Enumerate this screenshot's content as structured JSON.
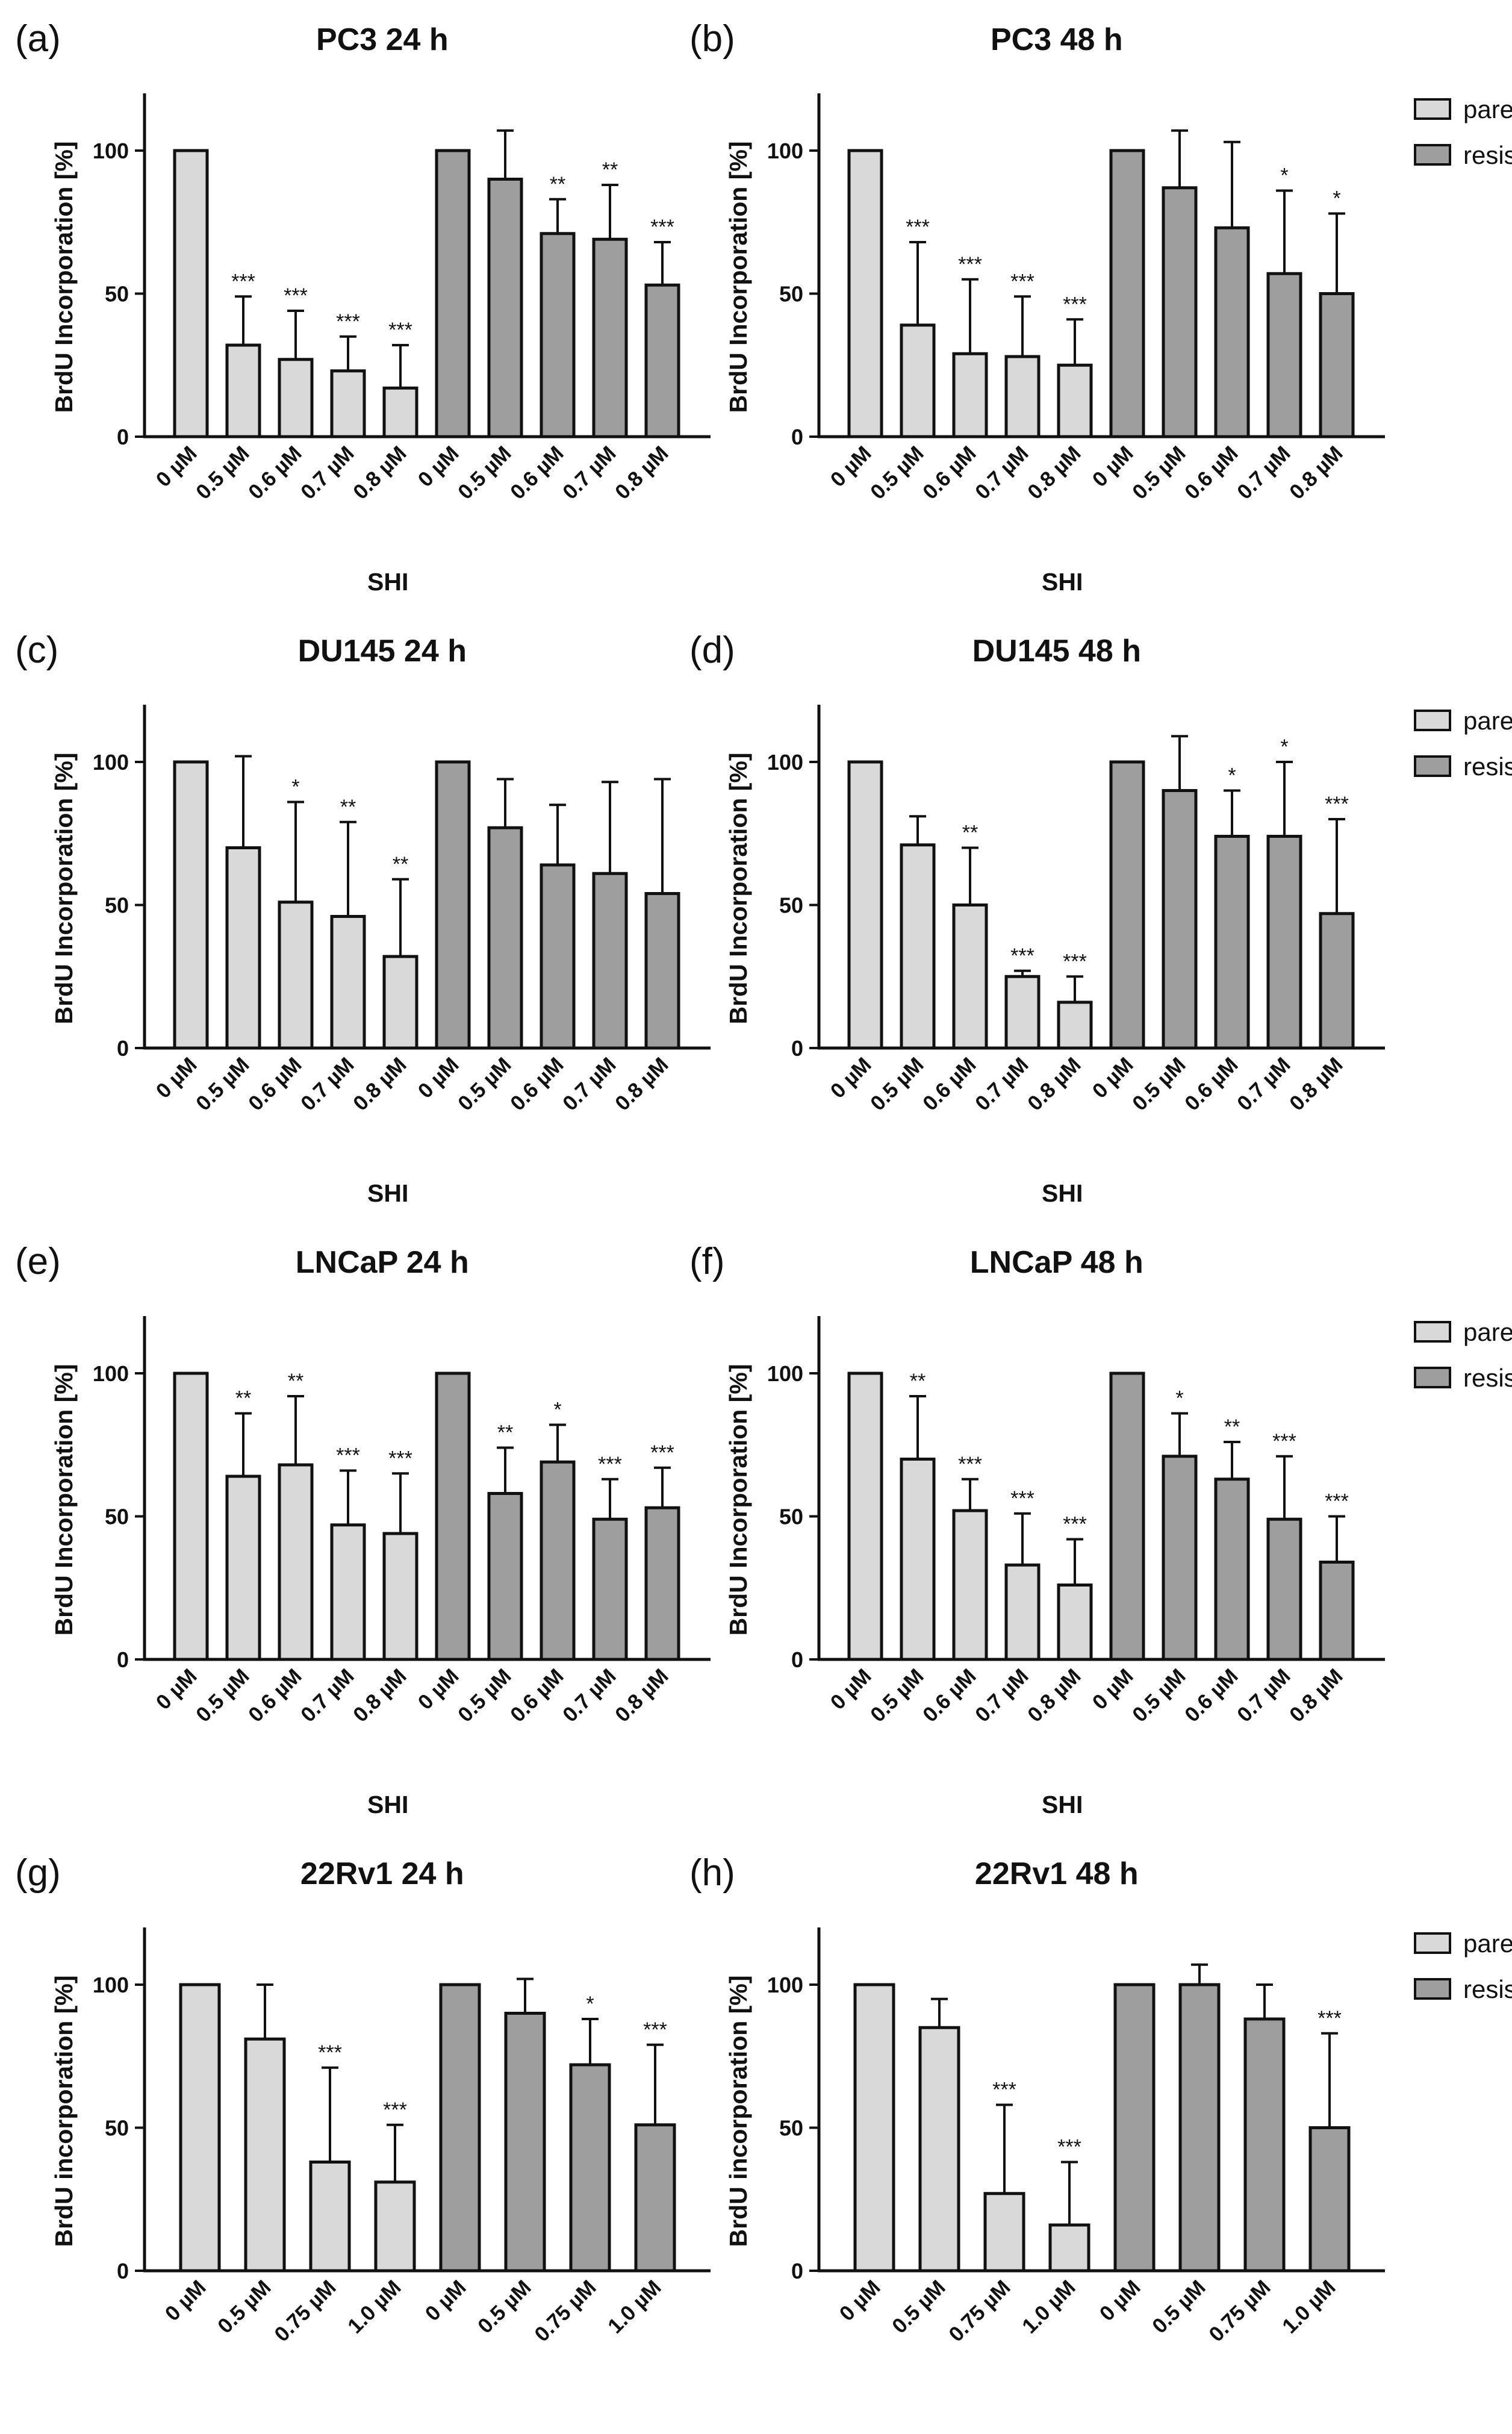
{
  "chart_data": [
    {
      "panel": "(a)",
      "title": "PC3 24 h",
      "type": "bar",
      "ylabel": "BrdU Incorporation [%]",
      "xlabel": "SHI",
      "ylim": [
        0,
        120
      ],
      "yticks": [
        0,
        50,
        100
      ],
      "categories": [
        "0 µM",
        "0.5 µM",
        "0.6 µM",
        "0.7 µM",
        "0.8 µM"
      ],
      "series": [
        {
          "name": "parental",
          "values": [
            100,
            32,
            27,
            23,
            17
          ],
          "errors": [
            0,
            17,
            17,
            12,
            15
          ],
          "stars": [
            "",
            "***",
            "***",
            "***",
            "***"
          ]
        },
        {
          "name": "resistant",
          "values": [
            100,
            90,
            71,
            69,
            53
          ],
          "errors": [
            0,
            17,
            12,
            19,
            15
          ],
          "stars": [
            "",
            "",
            "**",
            "**",
            "***"
          ]
        }
      ],
      "legend": false
    },
    {
      "panel": "(b)",
      "title": "PC3 48 h",
      "type": "bar",
      "ylabel": "BrdU Incorporation [%]",
      "xlabel": "SHI",
      "ylim": [
        0,
        120
      ],
      "yticks": [
        0,
        50,
        100
      ],
      "categories": [
        "0 µM",
        "0.5 µM",
        "0.6 µM",
        "0.7 µM",
        "0.8 µM"
      ],
      "series": [
        {
          "name": "parental",
          "values": [
            100,
            39,
            29,
            28,
            25
          ],
          "errors": [
            0,
            29,
            26,
            21,
            16
          ],
          "stars": [
            "",
            "***",
            "***",
            "***",
            "***"
          ]
        },
        {
          "name": "resistant",
          "values": [
            100,
            87,
            73,
            57,
            50
          ],
          "errors": [
            0,
            20,
            30,
            29,
            28
          ],
          "stars": [
            "",
            "",
            "",
            "*",
            "*"
          ]
        }
      ],
      "legend": true
    },
    {
      "panel": "(c)",
      "title": "DU145 24 h",
      "type": "bar",
      "ylabel": "BrdU Incorporation [%]",
      "xlabel": "SHI",
      "ylim": [
        0,
        120
      ],
      "yticks": [
        0,
        50,
        100
      ],
      "categories": [
        "0 µM",
        "0.5 µM",
        "0.6 µM",
        "0.7 µM",
        "0.8 µM"
      ],
      "series": [
        {
          "name": "parental",
          "values": [
            100,
            70,
            51,
            46,
            32
          ],
          "errors": [
            0,
            32,
            35,
            33,
            27
          ],
          "stars": [
            "",
            "",
            "*",
            "**",
            "**"
          ]
        },
        {
          "name": "resistant",
          "values": [
            100,
            77,
            64,
            61,
            54
          ],
          "errors": [
            0,
            17,
            21,
            32,
            40
          ],
          "stars": [
            "",
            "",
            "",
            "",
            ""
          ]
        }
      ],
      "legend": false
    },
    {
      "panel": "(d)",
      "title": "DU145 48 h",
      "type": "bar",
      "ylabel": "BrdU Incorporation [%]",
      "xlabel": "SHI",
      "ylim": [
        0,
        120
      ],
      "yticks": [
        0,
        50,
        100
      ],
      "categories": [
        "0 µM",
        "0.5 µM",
        "0.6 µM",
        "0.7 µM",
        "0.8 µM"
      ],
      "series": [
        {
          "name": "parental",
          "values": [
            100,
            71,
            50,
            25,
            16
          ],
          "errors": [
            0,
            10,
            20,
            2,
            9
          ],
          "stars": [
            "",
            "",
            "**",
            "***",
            "***"
          ]
        },
        {
          "name": "resistant",
          "values": [
            100,
            90,
            74,
            74,
            47
          ],
          "errors": [
            0,
            19,
            16,
            26,
            33
          ],
          "stars": [
            "",
            "",
            "*",
            "*",
            "***"
          ]
        }
      ],
      "legend": true
    },
    {
      "panel": "(e)",
      "title": "LNCaP 24 h",
      "type": "bar",
      "ylabel": "BrdU Incorporation [%]",
      "xlabel": "SHI",
      "ylim": [
        0,
        120
      ],
      "yticks": [
        0,
        50,
        100
      ],
      "categories": [
        "0 µM",
        "0.5 µM",
        "0.6 µM",
        "0.7 µM",
        "0.8 µM"
      ],
      "series": [
        {
          "name": "parental",
          "values": [
            100,
            64,
            68,
            47,
            44
          ],
          "errors": [
            0,
            22,
            24,
            19,
            21
          ],
          "stars": [
            "",
            "**",
            "**",
            "***",
            "***"
          ]
        },
        {
          "name": "resistant",
          "values": [
            100,
            58,
            69,
            49,
            53
          ],
          "errors": [
            0,
            16,
            13,
            14,
            14
          ],
          "stars": [
            "",
            "**",
            "*",
            "***",
            "***"
          ]
        }
      ],
      "legend": false
    },
    {
      "panel": "(f)",
      "title": "LNCaP 48 h",
      "type": "bar",
      "ylabel": "BrdU Incorporation [%]",
      "xlabel": "SHI",
      "ylim": [
        0,
        120
      ],
      "yticks": [
        0,
        50,
        100
      ],
      "categories": [
        "0 µM",
        "0.5 µM",
        "0.6 µM",
        "0.7 µM",
        "0.8 µM"
      ],
      "series": [
        {
          "name": "parental",
          "values": [
            100,
            70,
            52,
            33,
            26
          ],
          "errors": [
            0,
            22,
            11,
            18,
            16
          ],
          "stars": [
            "",
            "**",
            "***",
            "***",
            "***"
          ]
        },
        {
          "name": "resistant",
          "values": [
            100,
            71,
            63,
            49,
            34
          ],
          "errors": [
            0,
            15,
            13,
            22,
            16
          ],
          "stars": [
            "",
            "*",
            "**",
            "***",
            "***"
          ]
        }
      ],
      "legend": true
    },
    {
      "panel": "(g)",
      "title": "22Rv1 24 h",
      "type": "bar",
      "ylabel": "BrdU incorporation [%]",
      "xlabel": "SHI",
      "ylim": [
        0,
        120
      ],
      "yticks": [
        0,
        50,
        100
      ],
      "categories": [
        "0 µM",
        "0.5 µM",
        "0.75 µM",
        "1.0 µM"
      ],
      "series": [
        {
          "name": "parental",
          "values": [
            100,
            81,
            38,
            31
          ],
          "errors": [
            0,
            19,
            33,
            20
          ],
          "stars": [
            "",
            "",
            "***",
            "***"
          ]
        },
        {
          "name": "resistant",
          "values": [
            100,
            90,
            72,
            51
          ],
          "errors": [
            0,
            12,
            16,
            28
          ],
          "stars": [
            "",
            "",
            "*",
            "***"
          ]
        }
      ],
      "legend": false
    },
    {
      "panel": "(h)",
      "title": "22Rv1 48 h",
      "type": "bar",
      "ylabel": "BrdU incorporation [%]",
      "xlabel": "SHI",
      "ylim": [
        0,
        120
      ],
      "yticks": [
        0,
        50,
        100
      ],
      "categories": [
        "0 µM",
        "0.5 µM",
        "0.75 µM",
        "1.0 µM"
      ],
      "series": [
        {
          "name": "parental",
          "values": [
            100,
            85,
            27,
            16
          ],
          "errors": [
            0,
            10,
            31,
            22
          ],
          "stars": [
            "",
            "",
            "***",
            "***"
          ]
        },
        {
          "name": "resistant",
          "values": [
            100,
            100,
            88,
            50
          ],
          "errors": [
            0,
            7,
            12,
            33
          ],
          "stars": [
            "",
            "",
            "",
            "***"
          ]
        }
      ],
      "legend": true
    }
  ],
  "legend": [
    {
      "name": "parental",
      "color": "#d9d9d9"
    },
    {
      "name": "resistant",
      "color": "#9e9e9e"
    }
  ]
}
